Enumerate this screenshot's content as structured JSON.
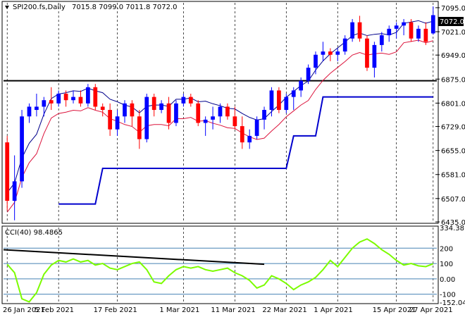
{
  "header": {
    "symbol": "SPI200.fs,Daily",
    "ohlc": "7015.8 7099.0 7011.8 7072.0",
    "collapse_icon": "triangle-down-icon"
  },
  "indicator": {
    "label": "CCI(40) 98.4865"
  },
  "colors": {
    "bull": "#0000ff",
    "bear": "#ff0000",
    "upper_band": "#00008b",
    "lower_band": "#dc143c",
    "stop_line": "#0000cd",
    "cci": "#7cfc00",
    "level_lines": "#4682b4",
    "grid": "#000000"
  },
  "chart_data": [
    {
      "type": "candlestick",
      "title": "SPI200.fs,Daily",
      "price_axis_labels": [
        "7095.0",
        "7021.0",
        "6949.0",
        "6875.0",
        "6801.0",
        "6729.0",
        "6655.0",
        "6581.0",
        "6507.0",
        "6435.0"
      ],
      "current_price": "7072.0",
      "date_labels": [
        "26 Jan 2021",
        "5 Feb 2021",
        "17 Feb 2021",
        "1 Mar 2021",
        "11 Mar 2021",
        "22 Mar 2021",
        "1 Apr 2021",
        "15 Apr 2021",
        "27 Apr 2021"
      ],
      "ylim": [
        6435,
        7110
      ],
      "candles": [
        [
          6680,
          6700,
          6470,
          6500
        ],
        [
          6500,
          6640,
          6440,
          6560
        ],
        [
          6560,
          6780,
          6540,
          6760
        ],
        [
          6760,
          6800,
          6740,
          6790
        ],
        [
          6780,
          6830,
          6760,
          6790
        ],
        [
          6790,
          6820,
          6760,
          6810
        ],
        [
          6810,
          6850,
          6780,
          6800
        ],
        [
          6800,
          6840,
          6790,
          6830
        ],
        [
          6830,
          6840,
          6790,
          6810
        ],
        [
          6810,
          6840,
          6800,
          6820
        ],
        [
          6820,
          6840,
          6790,
          6800
        ],
        [
          6800,
          6860,
          6790,
          6850
        ],
        [
          6850,
          6860,
          6780,
          6790
        ],
        [
          6790,
          6800,
          6760,
          6780
        ],
        [
          6780,
          6800,
          6700,
          6720
        ],
        [
          6720,
          6780,
          6700,
          6760
        ],
        [
          6760,
          6810,
          6740,
          6800
        ],
        [
          6800,
          6810,
          6730,
          6760
        ],
        [
          6760,
          6780,
          6660,
          6690
        ],
        [
          6690,
          6830,
          6680,
          6820
        ],
        [
          6820,
          6830,
          6760,
          6780
        ],
        [
          6780,
          6810,
          6770,
          6800
        ],
        [
          6800,
          6820,
          6720,
          6740
        ],
        [
          6740,
          6810,
          6730,
          6800
        ],
        [
          6800,
          6830,
          6790,
          6820
        ],
        [
          6820,
          6830,
          6790,
          6800
        ],
        [
          6800,
          6810,
          6730,
          6740
        ],
        [
          6740,
          6760,
          6700,
          6750
        ],
        [
          6750,
          6790,
          6720,
          6760
        ],
        [
          6760,
          6800,
          6740,
          6790
        ],
        [
          6790,
          6800,
          6750,
          6760
        ],
        [
          6760,
          6790,
          6720,
          6730
        ],
        [
          6730,
          6760,
          6660,
          6680
        ],
        [
          6680,
          6720,
          6660,
          6700
        ],
        [
          6700,
          6760,
          6690,
          6750
        ],
        [
          6750,
          6790,
          6720,
          6780
        ],
        [
          6780,
          6850,
          6760,
          6840
        ],
        [
          6840,
          6850,
          6770,
          6780
        ],
        [
          6780,
          6830,
          6770,
          6820
        ],
        [
          6820,
          6850,
          6780,
          6840
        ],
        [
          6840,
          6880,
          6820,
          6870
        ],
        [
          6870,
          6920,
          6860,
          6910
        ],
        [
          6910,
          6960,
          6890,
          6950
        ],
        [
          6950,
          6990,
          6930,
          6960
        ],
        [
          6960,
          6970,
          6930,
          6950
        ],
        [
          6950,
          6970,
          6930,
          6960
        ],
        [
          6960,
          7010,
          6950,
          7000
        ],
        [
          7000,
          7060,
          6990,
          7050
        ],
        [
          7050,
          7070,
          6990,
          7000
        ],
        [
          7000,
          7010,
          6900,
          6910
        ],
        [
          6910,
          6990,
          6880,
          6980
        ],
        [
          6980,
          7020,
          6960,
          7010
        ],
        [
          7010,
          7040,
          6990,
          7030
        ],
        [
          7030,
          7050,
          7000,
          7040
        ],
        [
          7040,
          7060,
          7010,
          7050
        ],
        [
          7050,
          7060,
          6990,
          7000
        ],
        [
          7000,
          7040,
          6990,
          7030
        ],
        [
          7030,
          7050,
          6980,
          6990
        ],
        [
          7015.8,
          7099.0,
          7011.8,
          7072.0
        ]
      ],
      "cci_ylim": [
        -152.042,
        334.3816
      ],
      "cci_axis_labels": [
        "334.3816",
        "200",
        "100",
        "0.00",
        "-100",
        "-152.042"
      ],
      "cci_levels": [
        200,
        100,
        0,
        -100
      ],
      "cci_values": [
        95,
        40,
        -130,
        -150,
        -90,
        30,
        90,
        120,
        110,
        130,
        110,
        120,
        90,
        100,
        70,
        60,
        80,
        100,
        110,
        60,
        -20,
        -30,
        20,
        60,
        80,
        70,
        80,
        60,
        50,
        60,
        70,
        40,
        20,
        -10,
        -60,
        -40,
        20,
        0,
        -30,
        -70,
        -40,
        -20,
        10,
        60,
        120,
        80,
        140,
        200,
        240,
        260,
        230,
        190,
        160,
        120,
        90,
        100,
        85,
        80,
        98.4865
      ]
    }
  ]
}
